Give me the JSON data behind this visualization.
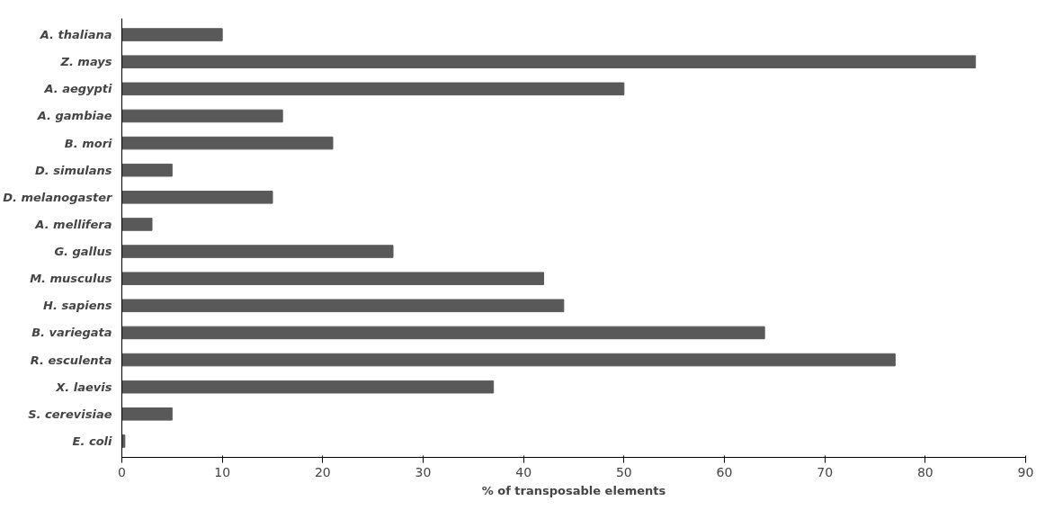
{
  "chart_data": {
    "type": "bar",
    "orientation": "horizontal",
    "xlabel": "% of transposable elements",
    "categories": [
      "A. thaliana",
      "Z. mays",
      "A. aegypti",
      "A. gambiae",
      "B. mori",
      "D. simulans",
      "D. melanogaster",
      "A. mellifera",
      "G. gallus",
      "M. musculus",
      "H. sapiens",
      "B. variegata",
      "R. esculenta",
      "X. laevis",
      "S. cerevisiae",
      "E. coli"
    ],
    "values": [
      10,
      85,
      50,
      16,
      21,
      5,
      15,
      3,
      27,
      42,
      44,
      64,
      77,
      37,
      5,
      0.3
    ],
    "color": "#595959",
    "xlim": [
      0,
      90
    ],
    "xticks": [
      0,
      10,
      20,
      30,
      40,
      50,
      60,
      70,
      80,
      90
    ],
    "grid": false
  }
}
